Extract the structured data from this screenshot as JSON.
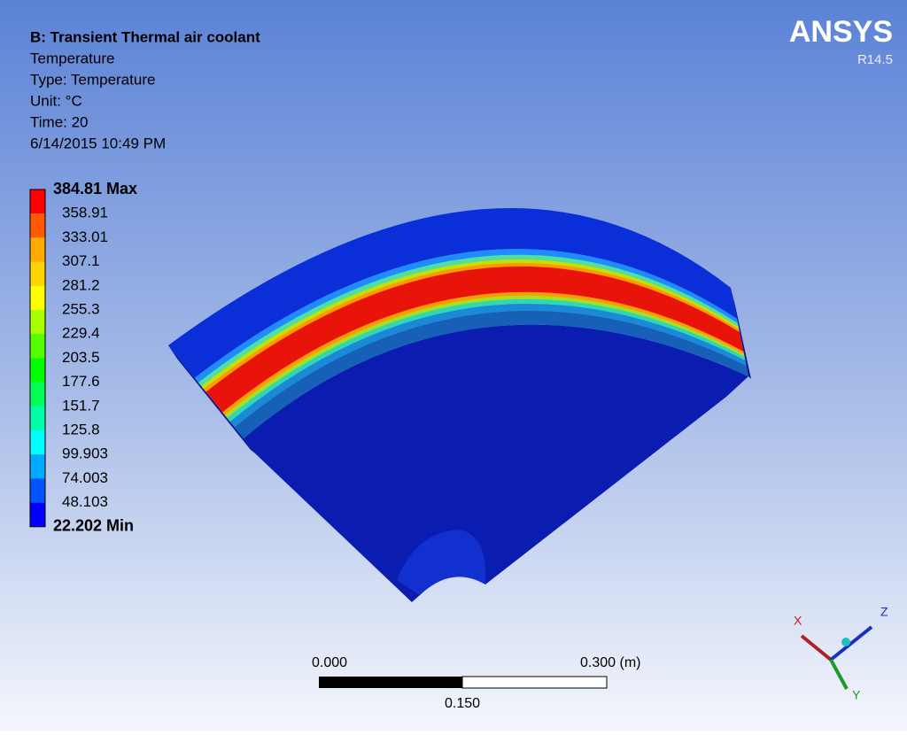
{
  "header": {
    "title": "B: Transient Thermal air coolant",
    "lines": [
      "Temperature",
      "Type: Temperature",
      "Unit: °C",
      "Time: 20",
      "6/14/2015 10:49 PM"
    ]
  },
  "logo": {
    "name": "ANSYS",
    "version": "R14.5"
  },
  "legend": {
    "labels": [
      "384.81 Max",
      "358.91",
      "333.01",
      "307.1",
      "281.2",
      "255.3",
      "229.4",
      "203.5",
      "177.6",
      "151.7",
      "125.8",
      "99.903",
      "74.003",
      "48.103",
      "22.202 Min"
    ],
    "colors": [
      "#ff0000",
      "#ff5a00",
      "#ffaa00",
      "#ffd400",
      "#ffff00",
      "#aaff00",
      "#55ff00",
      "#00ff00",
      "#00ff55",
      "#00ffaa",
      "#00ffff",
      "#00aaff",
      "#0055ff",
      "#0000ff"
    ]
  },
  "scale_bar": {
    "left": "0.000",
    "right": "0.300 (m)",
    "middle": "0.150"
  },
  "triad": {
    "x": "X",
    "y": "Y",
    "z": "Z"
  }
}
